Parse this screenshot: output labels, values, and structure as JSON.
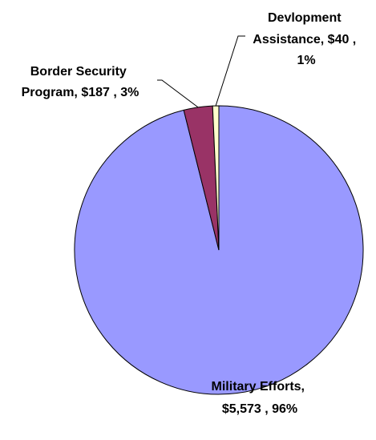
{
  "chart_data": {
    "type": "pie",
    "title": "",
    "start_angle_deg": 0,
    "direction": "clockwise",
    "slices": [
      {
        "key": "military",
        "value": 5573,
        "percent": 96,
        "color": "#9999FF",
        "label_lines": [
          "Military Efforts,",
          "$5,573 , 96%"
        ]
      },
      {
        "key": "border",
        "value": 187,
        "percent": 3,
        "color": "#993366",
        "label_lines": [
          "Border Security",
          "Program, $187 , 3%"
        ]
      },
      {
        "key": "development",
        "value": 40,
        "percent": 1,
        "color": "#FFFFCC",
        "label_lines": [
          "Devlopment",
          "Assistance, $40 ,",
          "1%"
        ]
      }
    ]
  }
}
